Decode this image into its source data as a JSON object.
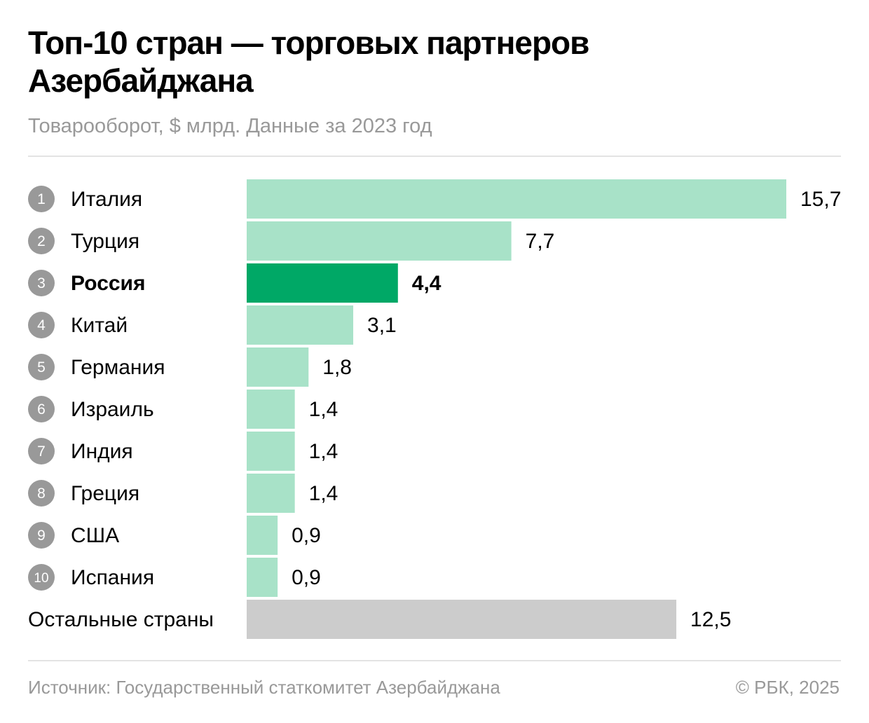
{
  "header": {
    "title": "Топ-10 стран — торговых партнеров Азербайджана",
    "subtitle": "Товарооборот, $ млрд. Данные за 2023 год"
  },
  "footer": {
    "source": "Источник: Государственный статкомитет Азербайджана",
    "copyright": "© РБК, 2025"
  },
  "colors": {
    "bar_default": "#a8e2c8",
    "bar_highlight": "#00a866",
    "bar_other": "#cccccc",
    "rank_badge": "#999999"
  },
  "chart_data": {
    "type": "bar",
    "orientation": "horizontal",
    "title": "Топ-10 стран — торговых партнеров Азербайджана",
    "subtitle": "Товарооборот, $ млрд. Данные за 2023 год",
    "xlabel": "",
    "ylabel": "",
    "xlim": [
      0,
      15.7
    ],
    "grid": false,
    "legend": "none",
    "categories": [
      "Италия",
      "Турция",
      "Россия",
      "Китай",
      "Германия",
      "Израиль",
      "Индия",
      "Греция",
      "США",
      "Испания",
      "Остальные страны"
    ],
    "ranks": [
      "1",
      "2",
      "3",
      "4",
      "5",
      "6",
      "7",
      "8",
      "9",
      "10",
      ""
    ],
    "values": [
      15.7,
      7.7,
      4.4,
      3.1,
      1.8,
      1.4,
      1.4,
      1.4,
      0.9,
      0.9,
      12.5
    ],
    "value_labels": [
      "15,7",
      "7,7",
      "4,4",
      "3,1",
      "1,8",
      "1,4",
      "1,4",
      "1,4",
      "0,9",
      "0,9",
      "12,5"
    ],
    "highlighted": [
      "Россия"
    ],
    "other_category": "Остальные страны"
  }
}
